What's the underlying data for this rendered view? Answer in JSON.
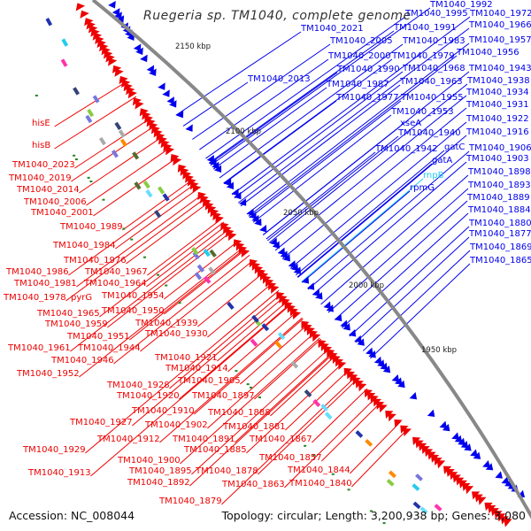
{
  "title": "Ruegeria sp. TM1040, complete genome",
  "footer": {
    "accession": "Accession: NC_008044",
    "summary": "Topology: circular; Length: 3,200,938 bp; Genes: 3,080"
  },
  "ticks": [
    "2150 kbp",
    "2100 kbp",
    "2050 kbp",
    "2000 kbp",
    "1950 kbp"
  ],
  "colors": {
    "forward": "#0000ee",
    "reverse": "#ee0000",
    "rna": "#22ccee",
    "backbone": "#888888"
  },
  "blue_labels": [
    {
      "text": "TM1040_1992"
    },
    {
      "text": "TM1040_1995"
    },
    {
      "text": "TM1040_1972"
    },
    {
      "text": "TM1040_1966"
    },
    {
      "text": "TM1040_1991"
    },
    {
      "text": "TM1040_2021"
    },
    {
      "text": "TM1040_1983"
    },
    {
      "text": "TM1040_1957"
    },
    {
      "text": "TM1040_2005"
    },
    {
      "text": "TM1040_1956"
    },
    {
      "text": "TM1040_2000"
    },
    {
      "text": "TM1040_1979"
    },
    {
      "text": "TM1040_1968"
    },
    {
      "text": "TM1040_1943"
    },
    {
      "text": "TM1040_1990"
    },
    {
      "text": "TM1040_2013"
    },
    {
      "text": "TM1040_1963"
    },
    {
      "text": "TM1040_1938"
    },
    {
      "text": "TM1040_1987"
    },
    {
      "text": "TM1040_1934"
    },
    {
      "text": "TM1040_1977"
    },
    {
      "text": "TM1040_1955"
    },
    {
      "text": "TM1040_1931"
    },
    {
      "text": "TM1040_1953"
    },
    {
      "text": "TM1040_1922"
    },
    {
      "text": "xseA"
    },
    {
      "text": "TM1040_1940"
    },
    {
      "text": "TM1040_1916"
    },
    {
      "text": "TM1040_1942"
    },
    {
      "text": "gatC"
    },
    {
      "text": "TM1040_1906"
    },
    {
      "text": "TM1040_1903"
    },
    {
      "text": "gatA"
    },
    {
      "text": "rnpB",
      "rna": true
    },
    {
      "text": "TM1040_1898"
    },
    {
      "text": "rpmG"
    },
    {
      "text": "TM1040_1893"
    },
    {
      "text": "TM1040_1889"
    },
    {
      "text": "TM1040_1884"
    },
    {
      "text": "TM1040_1880"
    },
    {
      "text": "TM1040_1877"
    },
    {
      "text": "TM1040_1869"
    },
    {
      "text": "TM1040_1865"
    }
  ],
  "red_labels": [
    {
      "text": "hisE"
    },
    {
      "text": "hisB"
    },
    {
      "text": "TM1040_2023"
    },
    {
      "text": "TM1040_2019"
    },
    {
      "text": "TM1040_2014"
    },
    {
      "text": "TM1040_2006"
    },
    {
      "text": "TM1040_2001"
    },
    {
      "text": "TM1040_1989"
    },
    {
      "text": "TM1040_1984"
    },
    {
      "text": "TM1040_1976"
    },
    {
      "text": "TM1040_1986"
    },
    {
      "text": "TM1040_1967"
    },
    {
      "text": "TM1040_1981"
    },
    {
      "text": "TM1040_1964"
    },
    {
      "text": "TM1040_1978"
    },
    {
      "text": "pyrG"
    },
    {
      "text": "TM1040_1954"
    },
    {
      "text": "TM1040_1965"
    },
    {
      "text": "TM1040_1950"
    },
    {
      "text": "TM1040_1959"
    },
    {
      "text": "TM1040_1939"
    },
    {
      "text": "TM1040_1951"
    },
    {
      "text": "TM1040_1930"
    },
    {
      "text": "TM1040_1961"
    },
    {
      "text": "TM1040_1944"
    },
    {
      "text": "TM1040_1946"
    },
    {
      "text": "TM1040_1921"
    },
    {
      "text": "TM1040_1952"
    },
    {
      "text": "TM1040_1914"
    },
    {
      "text": "TM1040_1928"
    },
    {
      "text": "TM1040_1905"
    },
    {
      "text": "TM1040_1920"
    },
    {
      "text": "TM1040_1897"
    },
    {
      "text": "TM1040_1910"
    },
    {
      "text": "TM1040_1888"
    },
    {
      "text": "TM1040_1927"
    },
    {
      "text": "TM1040_1902"
    },
    {
      "text": "TM1040_1881"
    },
    {
      "text": "TM1040_1912"
    },
    {
      "text": "TM1040_1891"
    },
    {
      "text": "TM1040_1867"
    },
    {
      "text": "TM1040_1929"
    },
    {
      "text": "TM1040_1885"
    },
    {
      "text": "TM1040_1900"
    },
    {
      "text": "TM1040_1857"
    },
    {
      "text": "TM1040_1895"
    },
    {
      "text": "TM1040_1878"
    },
    {
      "text": "TM1040_1913"
    },
    {
      "text": "TM1040_1844"
    },
    {
      "text": "TM1040_1892"
    },
    {
      "text": "TM1040_1863"
    },
    {
      "text": "TM1040_1840"
    },
    {
      "text": "TM1040_1879"
    }
  ]
}
